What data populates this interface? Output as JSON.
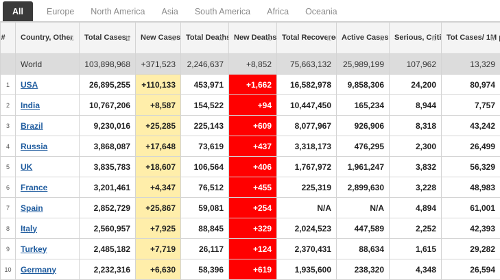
{
  "tabs": [
    "All",
    "Europe",
    "North America",
    "Asia",
    "South America",
    "Africa",
    "Oceania"
  ],
  "columns": [
    {
      "label": "#",
      "sort": false,
      "active": false
    },
    {
      "label": "Country, Other",
      "sort": true,
      "active": false
    },
    {
      "label": "Total Cases",
      "sort": true,
      "active": true
    },
    {
      "label": "New Cases",
      "sort": true,
      "active": false
    },
    {
      "label": "Total Deaths",
      "sort": true,
      "active": false
    },
    {
      "label": "New Deaths",
      "sort": true,
      "active": false
    },
    {
      "label": "Total Recovered",
      "sort": true,
      "active": false
    },
    {
      "label": "Active Cases",
      "sort": true,
      "active": false
    },
    {
      "label": "Serious, Critical",
      "sort": true,
      "active": false
    },
    {
      "label": "Tot Cases/ 1M pop",
      "sort": true,
      "active": false
    }
  ],
  "world": {
    "country": "World",
    "total_cases": "103,898,968",
    "new_cases": "+371,523",
    "total_deaths": "2,246,637",
    "new_deaths": "+8,852",
    "total_recovered": "75,663,132",
    "active_cases": "25,989,199",
    "serious": "107,962",
    "per_million": "13,329"
  },
  "rows": [
    {
      "index": "1",
      "country": "USA",
      "total_cases": "26,895,255",
      "new_cases": "+110,133",
      "total_deaths": "453,971",
      "new_deaths": "+1,662",
      "total_recovered": "16,582,978",
      "active_cases": "9,858,306",
      "serious": "24,200",
      "per_million": "80,974"
    },
    {
      "index": "2",
      "country": "India",
      "total_cases": "10,767,206",
      "new_cases": "+8,587",
      "total_deaths": "154,522",
      "new_deaths": "+94",
      "total_recovered": "10,447,450",
      "active_cases": "165,234",
      "serious": "8,944",
      "per_million": "7,757"
    },
    {
      "index": "3",
      "country": "Brazil",
      "total_cases": "9,230,016",
      "new_cases": "+25,285",
      "total_deaths": "225,143",
      "new_deaths": "+609",
      "total_recovered": "8,077,967",
      "active_cases": "926,906",
      "serious": "8,318",
      "per_million": "43,242"
    },
    {
      "index": "4",
      "country": "Russia",
      "total_cases": "3,868,087",
      "new_cases": "+17,648",
      "total_deaths": "73,619",
      "new_deaths": "+437",
      "total_recovered": "3,318,173",
      "active_cases": "476,295",
      "serious": "2,300",
      "per_million": "26,499"
    },
    {
      "index": "5",
      "country": "UK",
      "total_cases": "3,835,783",
      "new_cases": "+18,607",
      "total_deaths": "106,564",
      "new_deaths": "+406",
      "total_recovered": "1,767,972",
      "active_cases": "1,961,247",
      "serious": "3,832",
      "per_million": "56,329"
    },
    {
      "index": "6",
      "country": "France",
      "total_cases": "3,201,461",
      "new_cases": "+4,347",
      "total_deaths": "76,512",
      "new_deaths": "+455",
      "total_recovered": "225,319",
      "active_cases": "2,899,630",
      "serious": "3,228",
      "per_million": "48,983"
    },
    {
      "index": "7",
      "country": "Spain",
      "total_cases": "2,852,729",
      "new_cases": "+25,867",
      "total_deaths": "59,081",
      "new_deaths": "+254",
      "total_recovered": "N/A",
      "active_cases": "N/A",
      "serious": "4,894",
      "per_million": "61,001"
    },
    {
      "index": "8",
      "country": "Italy",
      "total_cases": "2,560,957",
      "new_cases": "+7,925",
      "total_deaths": "88,845",
      "new_deaths": "+329",
      "total_recovered": "2,024,523",
      "active_cases": "447,589",
      "serious": "2,252",
      "per_million": "42,393"
    },
    {
      "index": "9",
      "country": "Turkey",
      "total_cases": "2,485,182",
      "new_cases": "+7,719",
      "total_deaths": "26,117",
      "new_deaths": "+124",
      "total_recovered": "2,370,431",
      "active_cases": "88,634",
      "serious": "1,615",
      "per_million": "29,282"
    },
    {
      "index": "10",
      "country": "Germany",
      "total_cases": "2,232,316",
      "new_cases": "+6,630",
      "total_deaths": "58,396",
      "new_deaths": "+619",
      "total_recovered": "1,935,600",
      "active_cases": "238,320",
      "serious": "4,348",
      "per_million": "26,594"
    }
  ],
  "colors": {
    "new_cases_bg": "#ffeeaa",
    "new_deaths_bg": "#ff0000",
    "world_row_bg": "#dcdcdc",
    "tab_active_bg": "#3a3a3a",
    "link": "#1e5b9e"
  }
}
